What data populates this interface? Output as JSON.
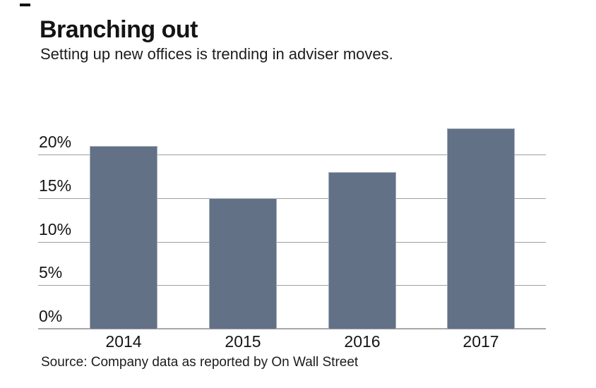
{
  "chart_data": {
    "type": "bar",
    "title": "Branching out",
    "subtitle": "Setting up new offices is trending in adviser moves.",
    "categories": [
      "2014",
      "2015",
      "2016",
      "2017"
    ],
    "values": [
      21,
      15,
      18,
      23
    ],
    "unit": "%",
    "xlabel": "",
    "ylabel": "",
    "ylim": [
      0,
      25
    ],
    "yticks": [
      0,
      5,
      10,
      15,
      20
    ],
    "ytick_labels": [
      "0%",
      "5%",
      "10%",
      "15%",
      "20%"
    ],
    "grid": true,
    "legend": false,
    "bar_color": "#637187",
    "bar_edge_color": "#a2adbb",
    "source": "Source: Company data as reported by On Wall Street"
  }
}
